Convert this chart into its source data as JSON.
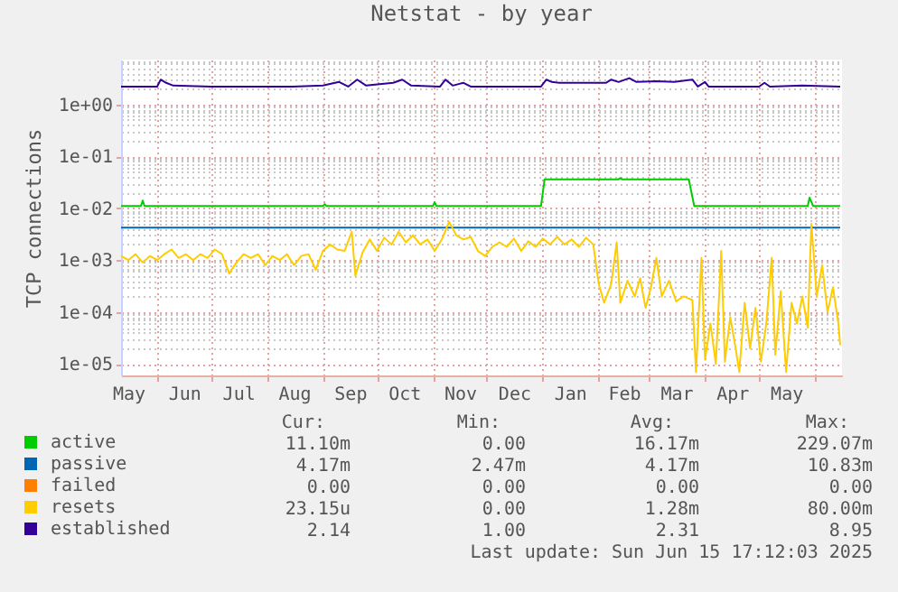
{
  "chart_data": {
    "type": "line",
    "title": "Netstat - by year",
    "ylabel": "TCP connections",
    "xlim": [
      "2024-05-12",
      "2025-06-16"
    ],
    "ylim": [
      6e-06,
      7.3
    ],
    "log": true,
    "grid": true,
    "legend": "bottom",
    "xticks": [
      {
        "value": "2024-05-16",
        "label": "May"
      },
      {
        "value": "2024-06-01",
        "label": null
      },
      {
        "value": "2024-06-16",
        "label": "Jun"
      },
      {
        "value": "2024-07-01",
        "label": null
      },
      {
        "value": "2024-07-16",
        "label": "Jul"
      },
      {
        "value": "2024-08-01",
        "label": null
      },
      {
        "value": "2024-08-16",
        "label": "Aug"
      },
      {
        "value": "2024-09-01",
        "label": null
      },
      {
        "value": "2024-09-16",
        "label": "Sep"
      },
      {
        "value": "2024-10-01",
        "label": null
      },
      {
        "value": "2024-10-16",
        "label": "Oct"
      },
      {
        "value": "2024-11-01",
        "label": null
      },
      {
        "value": "2024-11-16",
        "label": "Nov"
      },
      {
        "value": "2024-12-01",
        "label": null
      },
      {
        "value": "2024-12-16",
        "label": "Dec"
      },
      {
        "value": "2025-01-01",
        "label": null
      },
      {
        "value": "2025-01-16",
        "label": "Jan"
      },
      {
        "value": "2025-02-01",
        "label": null
      },
      {
        "value": "2025-02-15",
        "label": "Feb"
      },
      {
        "value": "2025-03-01",
        "label": null
      },
      {
        "value": "2025-03-16",
        "label": "Mar"
      },
      {
        "value": "2025-04-01",
        "label": null
      },
      {
        "value": "2025-04-16",
        "label": "Apr"
      },
      {
        "value": "2025-05-01",
        "label": null
      },
      {
        "value": "2025-05-16",
        "label": "May"
      },
      {
        "value": "2025-06-01",
        "label": null
      }
    ],
    "yticks": [
      {
        "value": 1e-05,
        "label": "1e-05"
      },
      {
        "value": 2e-05,
        "label": null
      },
      {
        "value": 3e-05,
        "label": null
      },
      {
        "value": 4e-05,
        "label": null
      },
      {
        "value": 5e-05,
        "label": null
      },
      {
        "value": 6e-05,
        "label": null
      },
      {
        "value": 7e-05,
        "label": null
      },
      {
        "value": 8e-05,
        "label": null
      },
      {
        "value": 9e-05,
        "label": null
      },
      {
        "value": 0.0001,
        "label": "1e-04"
      },
      {
        "value": 0.0002,
        "label": null
      },
      {
        "value": 0.0003,
        "label": null
      },
      {
        "value": 0.0004,
        "label": null
      },
      {
        "value": 0.0005,
        "label": null
      },
      {
        "value": 0.0006,
        "label": null
      },
      {
        "value": 0.0007,
        "label": null
      },
      {
        "value": 0.0008,
        "label": null
      },
      {
        "value": 0.0009,
        "label": null
      },
      {
        "value": 0.001,
        "label": "1e-03"
      },
      {
        "value": 0.002,
        "label": null
      },
      {
        "value": 0.003,
        "label": null
      },
      {
        "value": 0.004,
        "label": null
      },
      {
        "value": 0.005,
        "label": null
      },
      {
        "value": 0.006,
        "label": null
      },
      {
        "value": 0.007,
        "label": null
      },
      {
        "value": 0.008,
        "label": null
      },
      {
        "value": 0.009,
        "label": null
      },
      {
        "value": 0.01,
        "label": "1e-02"
      },
      {
        "value": 0.02,
        "label": null
      },
      {
        "value": 0.03,
        "label": null
      },
      {
        "value": 0.04,
        "label": null
      },
      {
        "value": 0.05,
        "label": null
      },
      {
        "value": 0.06,
        "label": null
      },
      {
        "value": 0.07,
        "label": null
      },
      {
        "value": 0.08,
        "label": null
      },
      {
        "value": 0.09,
        "label": null
      },
      {
        "value": 0.1,
        "label": "1e-01"
      },
      {
        "value": 0.2,
        "label": null
      },
      {
        "value": 0.3,
        "label": null
      },
      {
        "value": 0.4,
        "label": null
      },
      {
        "value": 0.5,
        "label": null
      },
      {
        "value": 0.6,
        "label": null
      },
      {
        "value": 0.7,
        "label": null
      },
      {
        "value": 0.8,
        "label": null
      },
      {
        "value": 0.9,
        "label": null
      },
      {
        "value": 1,
        "label": "1e+00"
      },
      {
        "value": 2,
        "label": null
      },
      {
        "value": 3,
        "label": null
      },
      {
        "value": 4,
        "label": null
      },
      {
        "value": 5,
        "label": null
      },
      {
        "value": 6,
        "label": null
      },
      {
        "value": 7,
        "label": null
      }
    ],
    "series": [
      {
        "name": "active",
        "color": "#00cc00",
        "x": [
          "2024-05-12",
          "2024-05-23",
          "2024-05-24",
          "2024-05-25",
          "2024-09-01",
          "2024-09-02",
          "2024-09-03",
          "2024-11-01",
          "2024-11-02",
          "2024-11-03",
          "2024-12-31",
          "2025-01-02",
          "2025-02-12",
          "2025-02-13",
          "2025-02-14",
          "2025-03-23",
          "2025-03-26",
          "2025-05-28",
          "2025-05-29",
          "2025-05-31",
          "2025-06-15"
        ],
        "values": [
          0.011,
          0.011,
          0.014,
          0.011,
          0.011,
          0.012,
          0.011,
          0.011,
          0.013,
          0.011,
          0.011,
          0.036,
          0.036,
          0.038,
          0.036,
          0.036,
          0.011,
          0.011,
          0.016,
          0.011,
          0.011
        ]
      },
      {
        "name": "passive",
        "color": "#0066b3",
        "x": [
          "2024-05-12",
          "2024-11-01",
          "2025-06-15"
        ],
        "values": [
          0.0042,
          0.0042,
          0.0042
        ]
      },
      {
        "name": "failed",
        "color": "#ff8000"
      },
      {
        "name": "resets",
        "color": "#ffcc00",
        "x": [
          "2024-05-12",
          "2024-05-16",
          "2024-05-20",
          "2024-05-24",
          "2024-05-28",
          "2024-06-01",
          "2024-06-05",
          "2024-06-09",
          "2024-06-13",
          "2024-06-17",
          "2024-06-21",
          "2024-06-25",
          "2024-06-29",
          "2024-07-03",
          "2024-07-07",
          "2024-07-11",
          "2024-07-15",
          "2024-07-19",
          "2024-07-23",
          "2024-07-27",
          "2024-07-31",
          "2024-08-04",
          "2024-08-08",
          "2024-08-12",
          "2024-08-16",
          "2024-08-20",
          "2024-08-24",
          "2024-08-28",
          "2024-09-01",
          "2024-09-05",
          "2024-09-09",
          "2024-09-13",
          "2024-09-17",
          "2024-09-19",
          "2024-09-23",
          "2024-09-27",
          "2024-10-01",
          "2024-10-05",
          "2024-10-09",
          "2024-10-13",
          "2024-10-17",
          "2024-10-21",
          "2024-10-25",
          "2024-10-29",
          "2024-11-02",
          "2024-11-06",
          "2024-11-10",
          "2024-11-14",
          "2024-11-18",
          "2024-11-22",
          "2024-11-26",
          "2024-11-30",
          "2024-12-04",
          "2024-12-08",
          "2024-12-12",
          "2024-12-16",
          "2024-12-20",
          "2024-12-24",
          "2024-12-28",
          "2025-01-01",
          "2025-01-05",
          "2025-01-09",
          "2025-01-13",
          "2025-01-17",
          "2025-01-21",
          "2025-01-25",
          "2025-01-29",
          "2025-02-01",
          "2025-02-04",
          "2025-02-08",
          "2025-02-11",
          "2025-02-13",
          "2025-02-17",
          "2025-02-21",
          "2025-02-24",
          "2025-02-27",
          "2025-03-02",
          "2025-03-05",
          "2025-03-08",
          "2025-03-12",
          "2025-03-16",
          "2025-03-20",
          "2025-03-25",
          "2025-03-27",
          "2025-03-30",
          "2025-04-01",
          "2025-04-04",
          "2025-04-07",
          "2025-04-10",
          "2025-04-12",
          "2025-04-15",
          "2025-04-18",
          "2025-04-20",
          "2025-04-23",
          "2025-04-26",
          "2025-04-29",
          "2025-05-02",
          "2025-05-05",
          "2025-05-08",
          "2025-05-10",
          "2025-05-13",
          "2025-05-16",
          "2025-05-19",
          "2025-05-22",
          "2025-05-25",
          "2025-05-28",
          "2025-05-30",
          "2025-06-02",
          "2025-06-05",
          "2025-06-08",
          "2025-06-11",
          "2025-06-14",
          "2025-06-15"
        ],
        "values": [
          0.0012,
          0.001,
          0.0013,
          0.0009,
          0.0012,
          0.001,
          0.0013,
          0.0016,
          0.0011,
          0.0013,
          0.001,
          0.0013,
          0.0011,
          0.0016,
          0.0013,
          0.00055,
          0.0009,
          0.0013,
          0.0011,
          0.0013,
          0.0008,
          0.0012,
          0.001,
          0.0013,
          0.0008,
          0.0012,
          0.0013,
          0.00065,
          0.0015,
          0.002,
          0.0016,
          0.0015,
          0.0035,
          0.0005,
          0.0014,
          0.0025,
          0.0015,
          0.0027,
          0.002,
          0.0035,
          0.0022,
          0.003,
          0.002,
          0.0025,
          0.0015,
          0.0025,
          0.0055,
          0.003,
          0.0025,
          0.0028,
          0.0015,
          0.0012,
          0.0018,
          0.0022,
          0.0018,
          0.0026,
          0.0015,
          0.0023,
          0.0018,
          0.0026,
          0.002,
          0.0028,
          0.002,
          0.0025,
          0.0018,
          0.0027,
          0.002,
          0.00035,
          0.00015,
          0.00035,
          0.0022,
          0.00015,
          0.0004,
          0.0002,
          0.00045,
          0.00012,
          0.0003,
          0.0011,
          0.0002,
          0.0004,
          0.00016,
          0.0002,
          0.00017,
          7e-06,
          0.0011,
          1.2e-05,
          6e-05,
          1e-05,
          0.0015,
          1.1e-05,
          8e-05,
          2e-05,
          7e-06,
          0.00015,
          2e-05,
          0.00012,
          1.1e-05,
          6e-05,
          0.0011,
          1.5e-05,
          0.00025,
          7e-06,
          0.00015,
          6e-05,
          0.0002,
          5e-05,
          0.005,
          0.0002,
          0.0008,
          0.0001,
          0.0003,
          6e-05,
          2.3e-05
        ]
      },
      {
        "name": "established",
        "color": "#330099",
        "x": [
          "2024-05-12",
          "2024-06-01",
          "2024-06-03",
          "2024-06-06",
          "2024-06-10",
          "2024-07-01",
          "2024-08-15",
          "2024-09-01",
          "2024-09-10",
          "2024-09-15",
          "2024-09-20",
          "2024-09-25",
          "2024-10-10",
          "2024-10-15",
          "2024-10-20",
          "2024-11-05",
          "2024-11-08",
          "2024-11-12",
          "2024-11-18",
          "2024-11-22",
          "2024-12-31",
          "2025-01-03",
          "2025-01-06",
          "2025-01-10",
          "2025-02-05",
          "2025-02-08",
          "2025-02-12",
          "2025-02-18",
          "2025-02-22",
          "2025-03-05",
          "2025-03-15",
          "2025-03-25",
          "2025-03-28",
          "2025-04-01",
          "2025-04-03",
          "2025-05-01",
          "2025-05-04",
          "2025-05-07",
          "2025-05-25",
          "2025-06-15"
        ],
        "values": [
          2.2,
          2.2,
          3.0,
          2.6,
          2.3,
          2.2,
          2.2,
          2.3,
          2.7,
          2.2,
          3.0,
          2.3,
          2.6,
          3.0,
          2.3,
          2.2,
          3.0,
          2.3,
          2.6,
          2.2,
          2.2,
          3.0,
          2.7,
          2.6,
          2.6,
          3.0,
          2.7,
          3.2,
          2.7,
          2.8,
          2.7,
          3.0,
          2.2,
          2.7,
          2.2,
          2.2,
          2.6,
          2.2,
          2.3,
          2.2
        ]
      }
    ],
    "annotations": [
      "Cur:",
      "Min:",
      "Avg:",
      "Max:",
      "11.10m",
      "0.00",
      "16.17m",
      "229.07m",
      "4.17m",
      "2.47m",
      "4.17m",
      "10.83m",
      "0.00",
      "0.00",
      "0.00",
      "0.00",
      "23.15u",
      "0.00",
      "1.28m",
      "80.00m",
      "2.14",
      "1.00",
      "2.31",
      "8.95",
      "Last update: Sun Jun 15 17:12:03 2025"
    ]
  }
}
